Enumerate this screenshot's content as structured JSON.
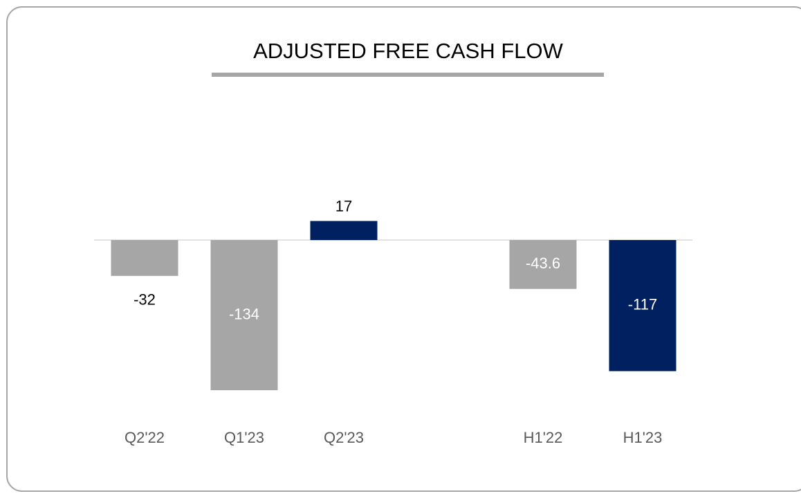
{
  "chart_data": {
    "type": "bar",
    "title": "ADJUSTED FREE CASH FLOW",
    "categories": [
      "Q2'22",
      "Q1'23",
      "Q2'23",
      null,
      "H1'22",
      "H1'23"
    ],
    "values": [
      -32,
      -134,
      17,
      null,
      -43.6,
      -117
    ],
    "colors": [
      "#a6a6a6",
      "#a6a6a6",
      "#002060",
      null,
      "#a6a6a6",
      "#002060"
    ]
  }
}
